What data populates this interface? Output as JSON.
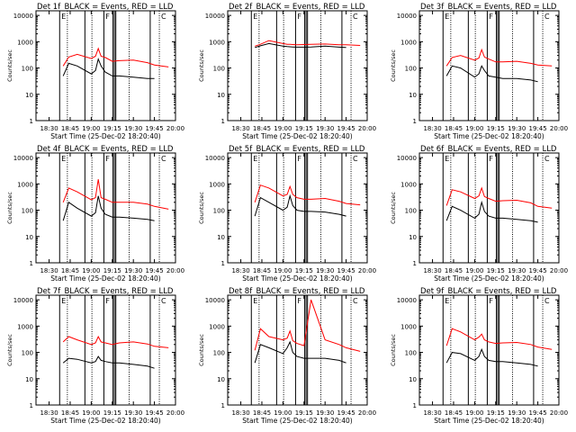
{
  "figure": {
    "x_tick_labels": [
      "18:30",
      "18:45",
      "19:00",
      "19:15",
      "19:30",
      "19:45",
      "20:00"
    ],
    "y_tick_labels": [
      "1",
      "10",
      "100",
      "1000",
      "10000"
    ],
    "xlabel": "Start Time (25-Dec-02 18:20:40)",
    "ylabel": "Counts/sec",
    "flag_labels": [
      "E",
      "F",
      "C"
    ]
  },
  "colors": {
    "events": "#000000",
    "lld": "#ff0000",
    "background": "#ffffff"
  },
  "chart_data": [
    {
      "type": "line",
      "title": "Det  1f_BLACK = Events, RED = LLD",
      "xlim": [
        "18:20:40",
        "20:00"
      ],
      "ylim": [
        1,
        15000
      ],
      "yscale": "log",
      "x": [
        "18:30",
        "18:37",
        "18:40",
        "18:44",
        "18:50",
        "19:00",
        "19:03",
        "19:05",
        "19:07",
        "19:10",
        "19:15",
        "19:20",
        "19:30",
        "19:40",
        "19:45",
        "19:55"
      ],
      "series": [
        {
          "name": "Events",
          "values": [
            null,
            null,
            50,
            150,
            120,
            60,
            80,
            220,
            120,
            70,
            50,
            50,
            45,
            40,
            40,
            null
          ]
        },
        {
          "name": "LLD",
          "values": [
            null,
            null,
            120,
            260,
            330,
            230,
            280,
            550,
            280,
            250,
            180,
            190,
            200,
            160,
            130,
            110
          ]
        }
      ]
    },
    {
      "type": "line",
      "title": "Det  2f_BLACK = Events, RED = LLD",
      "xlim": [
        "18:20:40",
        "20:00"
      ],
      "ylim": [
        1,
        15000
      ],
      "yscale": "log",
      "x": [
        "18:30",
        "18:37",
        "18:40",
        "18:44",
        "18:50",
        "19:00",
        "19:03",
        "19:05",
        "19:07",
        "19:10",
        "19:15",
        "19:20",
        "19:30",
        "19:40",
        "19:45",
        "19:55"
      ],
      "series": [
        {
          "name": "Events",
          "values": [
            null,
            null,
            600,
            700,
            850,
            680,
            650,
            640,
            630,
            620,
            620,
            630,
            680,
            620,
            600,
            null
          ]
        },
        {
          "name": "LLD",
          "values": [
            null,
            null,
            680,
            800,
            1100,
            850,
            800,
            790,
            780,
            770,
            780,
            790,
            820,
            770,
            760,
            720
          ]
        }
      ]
    },
    {
      "type": "line",
      "title": "Det  3f_BLACK = Events, RED = LLD",
      "xlim": [
        "18:20:40",
        "20:00"
      ],
      "ylim": [
        1,
        15000
      ],
      "yscale": "log",
      "x": [
        "18:30",
        "18:37",
        "18:40",
        "18:44",
        "18:50",
        "19:00",
        "19:03",
        "19:05",
        "19:07",
        "19:10",
        "19:15",
        "19:20",
        "19:30",
        "19:40",
        "19:45",
        "19:55"
      ],
      "series": [
        {
          "name": "Events",
          "values": [
            null,
            null,
            50,
            120,
            100,
            45,
            60,
            120,
            80,
            50,
            45,
            40,
            40,
            35,
            30,
            null
          ]
        },
        {
          "name": "LLD",
          "values": [
            null,
            null,
            120,
            250,
            300,
            200,
            240,
            500,
            260,
            220,
            170,
            170,
            180,
            150,
            130,
            120
          ]
        }
      ]
    },
    {
      "type": "line",
      "title": "Det  4f_BLACK = Events, RED = LLD",
      "xlim": [
        "18:20:40",
        "20:00"
      ],
      "ylim": [
        1,
        15000
      ],
      "yscale": "log",
      "x": [
        "18:30",
        "18:37",
        "18:40",
        "18:44",
        "18:50",
        "19:00",
        "19:03",
        "19:05",
        "19:07",
        "19:10",
        "19:15",
        "19:20",
        "19:30",
        "19:40",
        "19:45",
        "19:55"
      ],
      "series": [
        {
          "name": "Events",
          "values": [
            null,
            null,
            40,
            200,
            120,
            60,
            80,
            350,
            120,
            70,
            55,
            55,
            50,
            45,
            40,
            null
          ]
        },
        {
          "name": "LLD",
          "values": [
            null,
            null,
            200,
            700,
            500,
            250,
            300,
            1500,
            300,
            260,
            200,
            200,
            200,
            170,
            140,
            110
          ]
        }
      ]
    },
    {
      "type": "line",
      "title": "Det  5f_BLACK = Events, RED = LLD",
      "xlim": [
        "18:20:40",
        "20:00"
      ],
      "ylim": [
        1,
        15000
      ],
      "yscale": "log",
      "x": [
        "18:30",
        "18:37",
        "18:40",
        "18:44",
        "18:50",
        "19:00",
        "19:03",
        "19:05",
        "19:07",
        "19:10",
        "19:15",
        "19:20",
        "19:30",
        "19:40",
        "19:45",
        "19:55"
      ],
      "series": [
        {
          "name": "Events",
          "values": [
            null,
            null,
            60,
            300,
            200,
            100,
            130,
            350,
            150,
            100,
            90,
            90,
            85,
            70,
            60,
            null
          ]
        },
        {
          "name": "LLD",
          "values": [
            null,
            null,
            200,
            900,
            700,
            350,
            400,
            800,
            400,
            300,
            260,
            260,
            280,
            220,
            180,
            160
          ]
        }
      ]
    },
    {
      "type": "line",
      "title": "Det  6f_BLACK = Events, RED = LLD",
      "xlim": [
        "18:20:40",
        "20:00"
      ],
      "ylim": [
        1,
        15000
      ],
      "yscale": "log",
      "x": [
        "18:30",
        "18:37",
        "18:40",
        "18:44",
        "18:50",
        "19:00",
        "19:03",
        "19:05",
        "19:07",
        "19:10",
        "19:15",
        "19:20",
        "19:30",
        "19:40",
        "19:45",
        "19:55"
      ],
      "series": [
        {
          "name": "Events",
          "values": [
            null,
            null,
            40,
            140,
            100,
            50,
            70,
            200,
            90,
            60,
            50,
            50,
            45,
            40,
            35,
            null
          ]
        },
        {
          "name": "LLD",
          "values": [
            null,
            null,
            150,
            600,
            500,
            280,
            350,
            700,
            330,
            280,
            220,
            230,
            240,
            190,
            140,
            120
          ]
        }
      ]
    },
    {
      "type": "line",
      "title": "Det  7f_BLACK = Events, RED = LLD",
      "xlim": [
        "18:20:40",
        "20:00"
      ],
      "ylim": [
        1,
        15000
      ],
      "yscale": "log",
      "x": [
        "18:30",
        "18:37",
        "18:40",
        "18:44",
        "18:50",
        "19:00",
        "19:03",
        "19:05",
        "19:07",
        "19:10",
        "19:15",
        "19:20",
        "19:30",
        "19:40",
        "19:45",
        "19:55"
      ],
      "series": [
        {
          "name": "Events",
          "values": [
            null,
            null,
            40,
            60,
            55,
            40,
            45,
            70,
            50,
            45,
            40,
            40,
            35,
            30,
            25,
            null
          ]
        },
        {
          "name": "LLD",
          "values": [
            null,
            null,
            250,
            400,
            300,
            200,
            230,
            400,
            250,
            230,
            200,
            230,
            250,
            210,
            170,
            150
          ]
        }
      ]
    },
    {
      "type": "line",
      "title": "Det  8f_BLACK = Events, RED = LLD",
      "xlim": [
        "18:20:40",
        "20:00"
      ],
      "ylim": [
        1,
        15000
      ],
      "yscale": "log",
      "x": [
        "18:30",
        "18:37",
        "18:40",
        "18:44",
        "18:50",
        "19:00",
        "19:03",
        "19:05",
        "19:07",
        "19:10",
        "19:15",
        "19:20",
        "19:30",
        "19:40",
        "19:45",
        "19:55"
      ],
      "series": [
        {
          "name": "Events",
          "values": [
            null,
            null,
            40,
            200,
            150,
            90,
            150,
            250,
            100,
            70,
            60,
            60,
            60,
            50,
            40,
            null
          ]
        },
        {
          "name": "LLD",
          "values": [
            null,
            null,
            120,
            800,
            400,
            300,
            350,
            650,
            280,
            220,
            180,
            10000,
            300,
            200,
            150,
            110
          ]
        }
      ]
    },
    {
      "type": "line",
      "title": "Det  9f_BLACK = Events, RED = LLD",
      "xlim": [
        "18:20:40",
        "20:00"
      ],
      "ylim": [
        1,
        15000
      ],
      "yscale": "log",
      "x": [
        "18:30",
        "18:37",
        "18:40",
        "18:44",
        "18:50",
        "19:00",
        "19:03",
        "19:05",
        "19:07",
        "19:10",
        "19:15",
        "19:20",
        "19:30",
        "19:40",
        "19:45",
        "19:55"
      ],
      "series": [
        {
          "name": "Events",
          "values": [
            null,
            null,
            40,
            100,
            90,
            50,
            70,
            130,
            70,
            50,
            45,
            45,
            40,
            35,
            30,
            null
          ]
        },
        {
          "name": "LLD",
          "values": [
            null,
            null,
            180,
            800,
            600,
            300,
            380,
            500,
            300,
            250,
            220,
            230,
            240,
            200,
            160,
            130
          ]
        }
      ]
    }
  ]
}
